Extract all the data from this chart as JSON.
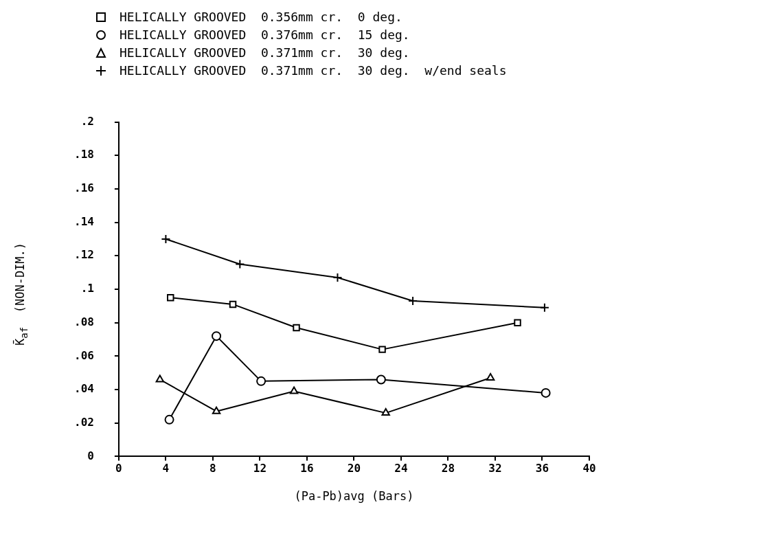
{
  "chart_data": {
    "type": "line",
    "xlabel": "(Pa-Pb)avg (Bars)",
    "ylabel": "K̄$_{af}$  (NON-DIM.)",
    "xlim": [
      0,
      40
    ],
    "xticks": [
      0,
      4,
      8,
      12,
      16,
      20,
      24,
      28,
      32,
      36,
      40
    ],
    "ylim": [
      0,
      0.2
    ],
    "yticks": [
      0,
      {
        "value": 0.02,
        "label": ".02"
      },
      {
        "value": 0.04,
        "label": ".04"
      },
      {
        "value": 0.06,
        "label": ".06"
      },
      {
        "value": 0.08,
        "label": ".08"
      },
      {
        "value": 0.1,
        "label": ".1"
      },
      {
        "value": 0.12,
        "label": ".12"
      },
      {
        "value": 0.14,
        "label": ".14"
      },
      {
        "value": 0.16,
        "label": ".16"
      },
      {
        "value": 0.18,
        "label": ".18"
      },
      {
        "value": 0.2,
        "label": ".2"
      }
    ],
    "grid": false,
    "legend": "top",
    "line_style": "solid",
    "series": [
      {
        "name": "HELICALLY GROOVED  0.356mm cr.  0 deg.",
        "color": "#000000",
        "marker": "square",
        "x": [
          4.4,
          9.7,
          15.1,
          22.4,
          33.9
        ],
        "values": [
          0.095,
          0.091,
          0.077,
          0.064,
          0.08
        ]
      },
      {
        "name": "HELICALLY GROOVED  0.376mm cr.  15 deg.",
        "color": "#000000",
        "marker": "circle",
        "x": [
          4.3,
          8.3,
          12.1,
          22.3,
          36.3
        ],
        "values": [
          0.022,
          0.072,
          0.045,
          0.046,
          0.038
        ]
      },
      {
        "name": "HELICALLY GROOVED  0.371mm cr.  30 deg.",
        "color": "#000000",
        "marker": "triangle",
        "x": [
          3.5,
          8.3,
          14.9,
          22.7,
          31.6
        ],
        "values": [
          0.046,
          0.027,
          0.039,
          0.026,
          0.047
        ]
      },
      {
        "name": "HELICALLY GROOVED  0.371mm cr.  30 deg.  w/end seals",
        "color": "#000000",
        "marker": "cross",
        "x": [
          4,
          10.3,
          18.6,
          25,
          36.2
        ],
        "values": [
          0.13,
          0.115,
          0.107,
          0.093,
          0.089
        ]
      }
    ]
  }
}
